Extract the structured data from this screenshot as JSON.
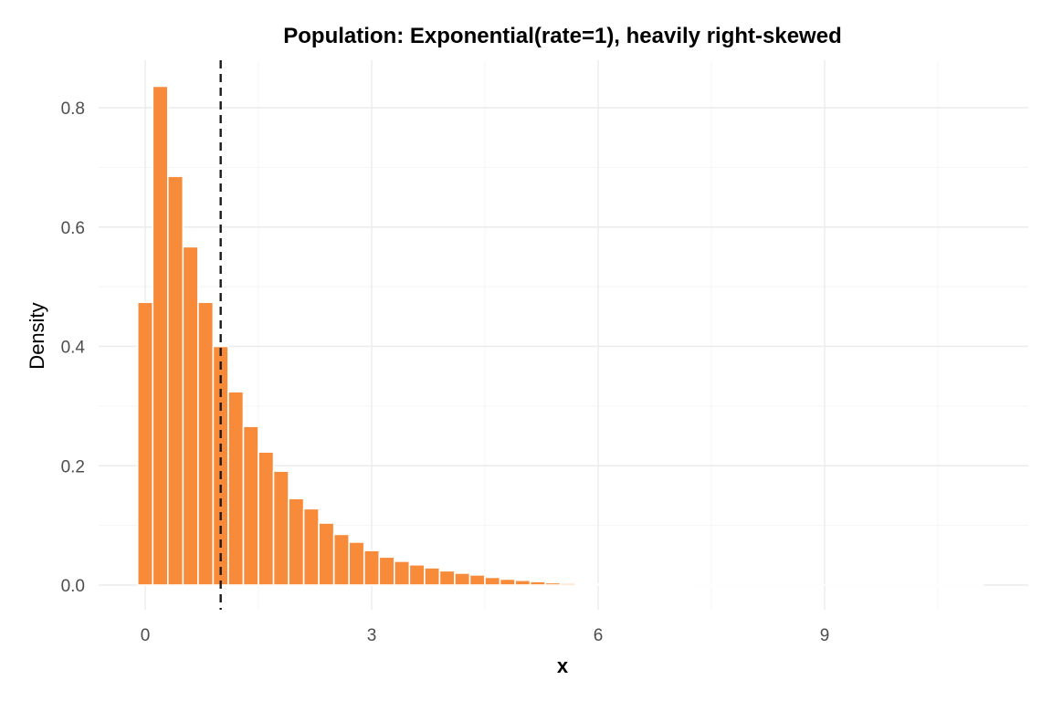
{
  "chart_data": {
    "type": "bar",
    "title": "Population: Exponential(rate=1), heavily right-skewed",
    "xlabel": "x",
    "ylabel": "Density",
    "xlim": [
      -0.6,
      11.2
    ],
    "ylim": [
      -0.04,
      0.88
    ],
    "x_ticks": [
      0,
      3,
      6,
      9
    ],
    "x_tick_labels": [
      "0",
      "3",
      "6",
      "9"
    ],
    "y_ticks": [
      0.0,
      0.2,
      0.4,
      0.6,
      0.8
    ],
    "y_tick_labels": [
      "0.0",
      "0.2",
      "0.4",
      "0.6",
      "0.8"
    ],
    "grid": true,
    "legend": "none",
    "bin_width": 0.2,
    "bin_centers": [
      0.0,
      0.2,
      0.4,
      0.6,
      0.8,
      1.0,
      1.2,
      1.4,
      1.6,
      1.8,
      2.0,
      2.2,
      2.4,
      2.6,
      2.8,
      3.0,
      3.2,
      3.4,
      3.6,
      3.8,
      4.0,
      4.2,
      4.4,
      4.6,
      4.8,
      5.0,
      5.2,
      5.4,
      5.6,
      5.8,
      6.0,
      6.2,
      6.4,
      6.6,
      6.8,
      7.0,
      7.2,
      7.4,
      7.6,
      7.8,
      8.0,
      8.2,
      8.4,
      8.6,
      8.8,
      9.0,
      9.2,
      9.4,
      9.6,
      9.8,
      10.0,
      10.2,
      10.4,
      10.6,
      10.8,
      11.0
    ],
    "values": [
      0.474,
      0.836,
      0.685,
      0.567,
      0.474,
      0.4,
      0.324,
      0.266,
      0.223,
      0.191,
      0.145,
      0.128,
      0.104,
      0.085,
      0.072,
      0.058,
      0.047,
      0.04,
      0.034,
      0.029,
      0.024,
      0.02,
      0.017,
      0.013,
      0.01,
      0.008,
      0.006,
      0.004,
      0.003,
      0.002,
      0.0015,
      0.001,
      0.0008,
      0.0006,
      0.0005,
      0.0004,
      0.0003,
      0.0002,
      0.0002,
      0.0001,
      0.0001,
      0.0001,
      0.0001,
      0.0001,
      0.0001,
      0.0001,
      0.0001,
      0.0001,
      0.0001,
      0.0001,
      0.0001,
      0.0001,
      0.0001,
      0.0001,
      0.0001,
      0.0001
    ],
    "mean_line_x": 1.0,
    "colors": {
      "bar": "#f88b3a",
      "mean_line": "#1a1a1a",
      "grid_major": "#ebebeb",
      "grid_minor": "#f4f4f4"
    }
  }
}
